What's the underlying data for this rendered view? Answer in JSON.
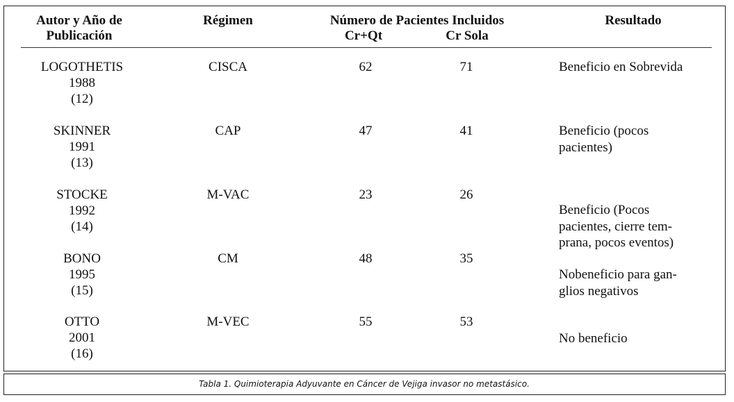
{
  "table": {
    "header": {
      "author": [
        "Autor y Año de",
        "Publicación"
      ],
      "regimen": "Régimen",
      "patients": "Número de Pacientes Incluidos",
      "cr_qt": "Cr+Qt",
      "cr_sola": "Cr Sola",
      "result": "Resultado"
    },
    "rows": [
      {
        "author": [
          "LOGOTHETIS",
          "1988",
          "(12)"
        ],
        "regimen": "CISCA",
        "cr_qt": 62,
        "cr_sola": 71,
        "result": [
          "Beneficio en Sobrevida"
        ]
      },
      {
        "author": [
          "SKINNER",
          "1991",
          "(13)"
        ],
        "regimen": "CAP",
        "cr_qt": 47,
        "cr_sola": 41,
        "result": [
          "Beneficio (pocos",
          "pacientes)"
        ]
      },
      {
        "author": [
          "STOCKE",
          "1992",
          "(14)"
        ],
        "regimen": "M-VAC",
        "cr_qt": 23,
        "cr_sola": 26,
        "result": [
          "Beneficio (Pocos",
          "pacientes, cierre tem-",
          "prana, pocos eventos)"
        ]
      },
      {
        "author": [
          "BONO",
          "1995",
          "(15)"
        ],
        "regimen": "CM",
        "cr_qt": 48,
        "cr_sola": 35,
        "result": [
          "Nobeneficio para gan-",
          "glios negativos"
        ]
      },
      {
        "author": [
          "OTTO",
          "2001",
          "(16)"
        ],
        "regimen": "M-VEC",
        "cr_qt": 55,
        "cr_sola": 53,
        "result": [
          "No beneficio"
        ]
      }
    ]
  },
  "caption": "Tabla 1. Quimioterapia Adyuvante en Cáncer de Vejiga invasor no metastásico."
}
